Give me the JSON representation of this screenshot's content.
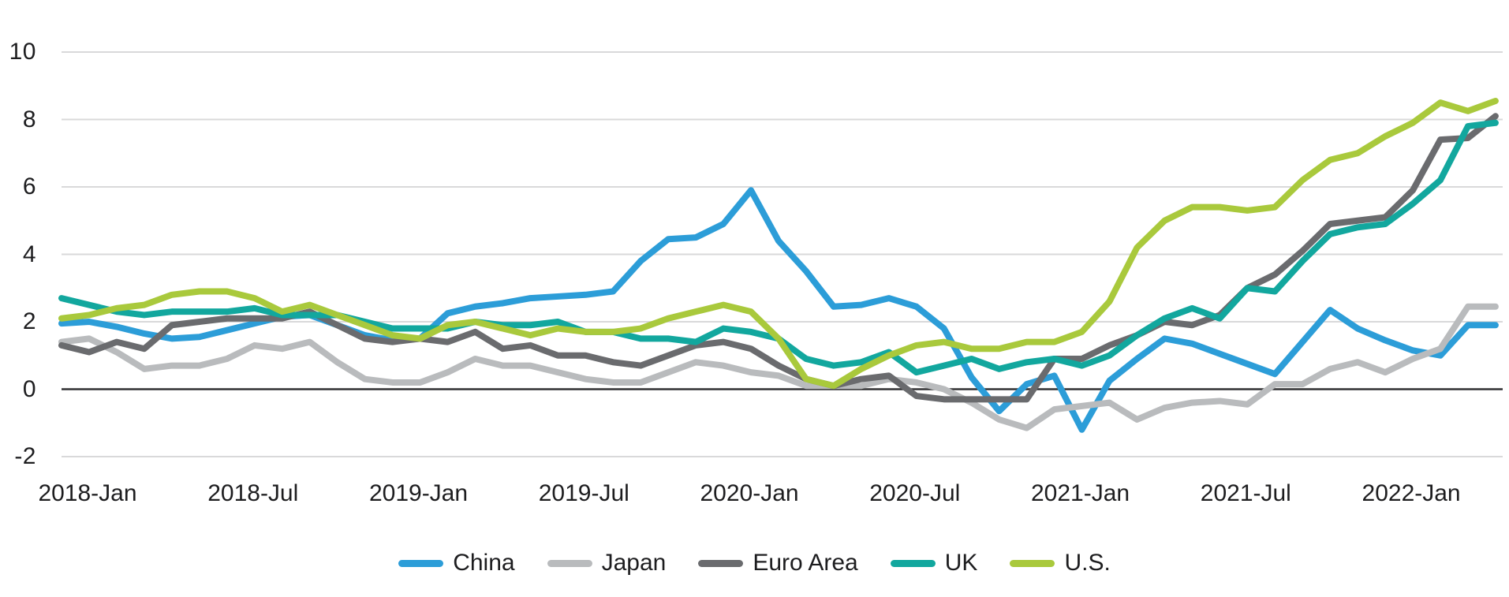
{
  "chart_data": {
    "type": "line",
    "title": "",
    "xlabel": "",
    "ylabel": "",
    "grid": "horizontal",
    "legend_position": "bottom",
    "ylim": [
      -2.8,
      10.8
    ],
    "y_ticks": [
      10,
      8,
      6,
      4,
      2,
      0,
      -2
    ],
    "x": [
      "2018-01",
      "2018-02",
      "2018-03",
      "2018-04",
      "2018-05",
      "2018-06",
      "2018-07",
      "2018-08",
      "2018-09",
      "2018-10",
      "2018-11",
      "2018-12",
      "2019-01",
      "2019-02",
      "2019-03",
      "2019-04",
      "2019-05",
      "2019-06",
      "2019-07",
      "2019-08",
      "2019-09",
      "2019-10",
      "2019-11",
      "2019-12",
      "2020-01",
      "2020-02",
      "2020-03",
      "2020-04",
      "2020-05",
      "2020-06",
      "2020-07",
      "2020-08",
      "2020-09",
      "2020-10",
      "2020-11",
      "2020-12",
      "2021-01",
      "2021-02",
      "2021-03",
      "2021-04",
      "2021-05",
      "2021-06",
      "2021-07",
      "2021-08",
      "2021-09",
      "2021-10",
      "2021-11",
      "2021-12",
      "2022-01",
      "2022-02",
      "2022-03",
      "2022-04",
      "2022-05"
    ],
    "x_tick_labels": [
      {
        "label": "2018-Jan",
        "month_index": 0
      },
      {
        "label": "2018-Jul",
        "month_index": 6
      },
      {
        "label": "2019-Jan",
        "month_index": 12
      },
      {
        "label": "2019-Jul",
        "month_index": 18
      },
      {
        "label": "2020-Jan",
        "month_index": 24
      },
      {
        "label": "2020-Jul",
        "month_index": 30
      },
      {
        "label": "2021-Jan",
        "month_index": 36
      },
      {
        "label": "2021-Jul",
        "month_index": 42
      },
      {
        "label": "2022-Jan",
        "month_index": 48
      }
    ],
    "series": [
      {
        "name": "China",
        "color": "#2c9dd8",
        "values": [
          1.95,
          2.0,
          1.85,
          1.65,
          1.5,
          1.55,
          1.75,
          1.95,
          2.15,
          2.2,
          1.9,
          1.6,
          1.45,
          1.5,
          2.25,
          2.45,
          2.55,
          2.7,
          2.75,
          2.8,
          2.9,
          3.8,
          4.45,
          4.5,
          4.9,
          5.9,
          4.4,
          3.5,
          2.45,
          2.5,
          2.7,
          2.45,
          1.8,
          0.35,
          -0.65,
          0.15,
          0.4,
          -1.2,
          0.25,
          0.9,
          1.5,
          1.35,
          1.05,
          0.75,
          0.45,
          1.4,
          2.35,
          1.8,
          1.45,
          1.15,
          1.0,
          1.9,
          1.9
        ]
      },
      {
        "name": "Japan",
        "color": "#b9bbbd",
        "values": [
          1.4,
          1.5,
          1.1,
          0.6,
          0.7,
          0.7,
          0.9,
          1.3,
          1.2,
          1.4,
          0.8,
          0.3,
          0.2,
          0.2,
          0.5,
          0.9,
          0.7,
          0.7,
          0.5,
          0.3,
          0.2,
          0.2,
          0.5,
          0.8,
          0.7,
          0.5,
          0.4,
          0.1,
          0.1,
          0.1,
          0.3,
          0.2,
          0.0,
          -0.4,
          -0.9,
          -1.15,
          -0.6,
          -0.5,
          -0.4,
          -0.9,
          -0.55,
          -0.4,
          -0.35,
          -0.45,
          0.15,
          0.15,
          0.6,
          0.8,
          0.5,
          0.9,
          1.2,
          2.45,
          2.45
        ]
      },
      {
        "name": "Euro Area",
        "color": "#6a6b6e",
        "values": [
          1.3,
          1.1,
          1.4,
          1.2,
          1.9,
          2.0,
          2.1,
          2.1,
          2.1,
          2.3,
          1.9,
          1.5,
          1.4,
          1.5,
          1.4,
          1.7,
          1.2,
          1.3,
          1.0,
          1.0,
          0.8,
          0.7,
          1.0,
          1.3,
          1.4,
          1.2,
          0.7,
          0.3,
          0.1,
          0.3,
          0.4,
          -0.2,
          -0.3,
          -0.3,
          -0.3,
          -0.3,
          0.9,
          0.9,
          1.3,
          1.6,
          2.0,
          1.9,
          2.2,
          3.0,
          3.4,
          4.1,
          4.9,
          5.0,
          5.1,
          5.9,
          7.4,
          7.45,
          8.1
        ]
      },
      {
        "name": "UK",
        "color": "#12a79e",
        "values": [
          2.7,
          2.5,
          2.3,
          2.2,
          2.3,
          2.3,
          2.3,
          2.4,
          2.2,
          2.2,
          2.2,
          2.0,
          1.8,
          1.8,
          1.8,
          2.0,
          1.9,
          1.9,
          2.0,
          1.7,
          1.7,
          1.5,
          1.5,
          1.4,
          1.8,
          1.7,
          1.5,
          0.9,
          0.7,
          0.8,
          1.1,
          0.5,
          0.7,
          0.9,
          0.6,
          0.8,
          0.9,
          0.7,
          1.0,
          1.6,
          2.1,
          2.4,
          2.1,
          3.0,
          2.9,
          3.8,
          4.6,
          4.8,
          4.9,
          5.5,
          6.2,
          7.8,
          7.9
        ]
      },
      {
        "name": "U.S.",
        "color": "#a9c93c",
        "values": [
          2.1,
          2.2,
          2.4,
          2.5,
          2.8,
          2.9,
          2.9,
          2.7,
          2.3,
          2.5,
          2.2,
          1.9,
          1.6,
          1.5,
          1.9,
          2.0,
          1.8,
          1.6,
          1.8,
          1.7,
          1.7,
          1.8,
          2.1,
          2.3,
          2.5,
          2.3,
          1.5,
          0.3,
          0.1,
          0.6,
          1.0,
          1.3,
          1.4,
          1.2,
          1.2,
          1.4,
          1.4,
          1.7,
          2.6,
          4.2,
          5.0,
          5.4,
          5.4,
          5.3,
          5.4,
          6.2,
          6.8,
          7.0,
          7.5,
          7.9,
          8.5,
          8.25,
          8.55
        ]
      }
    ]
  },
  "style": {
    "background": "#ffffff",
    "grid_color": "#d9d9da",
    "zero_line_color": "#303032",
    "text_color": "#1d1d1f"
  }
}
